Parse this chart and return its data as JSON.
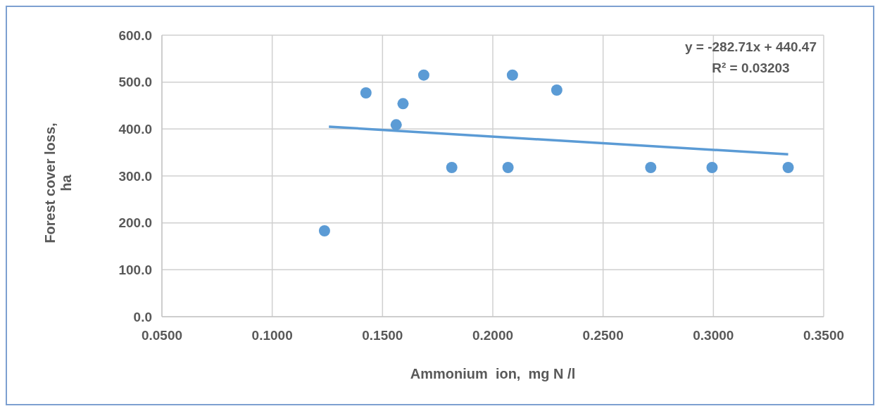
{
  "chart_data": {
    "type": "scatter",
    "xlabel": "Ammonium  ion,  mg N /l",
    "ylabel": "Forest cover loss, ha",
    "series": [
      {
        "marker": "circle",
        "color": "#5b9bd5",
        "x": [
          0.1237,
          0.1425,
          0.1562,
          0.1593,
          0.1687,
          0.1814,
          0.2069,
          0.2089,
          0.229,
          0.2716,
          0.2994,
          0.3339
        ],
        "values": [
          183,
          477,
          409,
          454,
          515,
          318,
          318,
          515,
          483,
          318,
          318,
          318
        ]
      },
      {
        "type": "line",
        "color": "#5b9bd5",
        "x": [
          0.1257,
          0.3339
        ],
        "values": [
          405,
          346
        ]
      }
    ],
    "xlim": [
      0.05,
      0.35
    ],
    "xticks": [
      {
        "value": 0.05,
        "label": "0.0500"
      },
      {
        "value": 0.1,
        "label": "0.1000"
      },
      {
        "value": 0.15,
        "label": "0.1500"
      },
      {
        "value": 0.2,
        "label": "0.2000"
      },
      {
        "value": 0.25,
        "label": "0.2500"
      },
      {
        "value": 0.3,
        "label": "0.3000"
      },
      {
        "value": 0.35,
        "label": "0.3500"
      }
    ],
    "ylim": [
      0,
      600
    ],
    "yticks": [
      {
        "value": 0,
        "label": "0.0"
      },
      {
        "value": 100,
        "label": "100.0"
      },
      {
        "value": 200,
        "label": "200.0"
      },
      {
        "value": 300,
        "label": "300.0"
      },
      {
        "value": 400,
        "label": "400.0"
      },
      {
        "value": 500,
        "label": "500.0"
      },
      {
        "value": 600,
        "label": "600.0"
      }
    ],
    "grid": true,
    "annotations": [
      "y = -282.71x + 440.47",
      "R² = 0.03203"
    ]
  }
}
